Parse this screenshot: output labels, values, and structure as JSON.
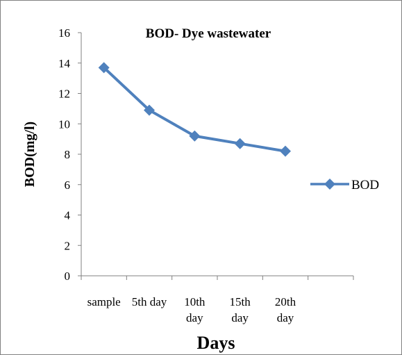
{
  "chart_data": {
    "type": "line",
    "title": "BOD- Dye wastewater",
    "xlabel": "Days",
    "ylabel": "BOD(mg/l)",
    "categories": [
      "sample",
      "5th day",
      "10th day",
      "15th day",
      "20th day"
    ],
    "category_lines": [
      [
        "sample"
      ],
      [
        "5th day"
      ],
      [
        "10th",
        "day"
      ],
      [
        "15th",
        "day"
      ],
      [
        "20th",
        "day"
      ]
    ],
    "category_slots": 6,
    "series": [
      {
        "name": "BOD",
        "values": [
          13.7,
          10.9,
          9.2,
          8.7,
          8.2
        ],
        "color": "#4f81bd",
        "marker": "diamond"
      }
    ],
    "ylim": [
      0,
      16
    ],
    "yticks": [
      0,
      2,
      4,
      6,
      8,
      10,
      12,
      14,
      16
    ],
    "grid": false,
    "legend": "right"
  }
}
